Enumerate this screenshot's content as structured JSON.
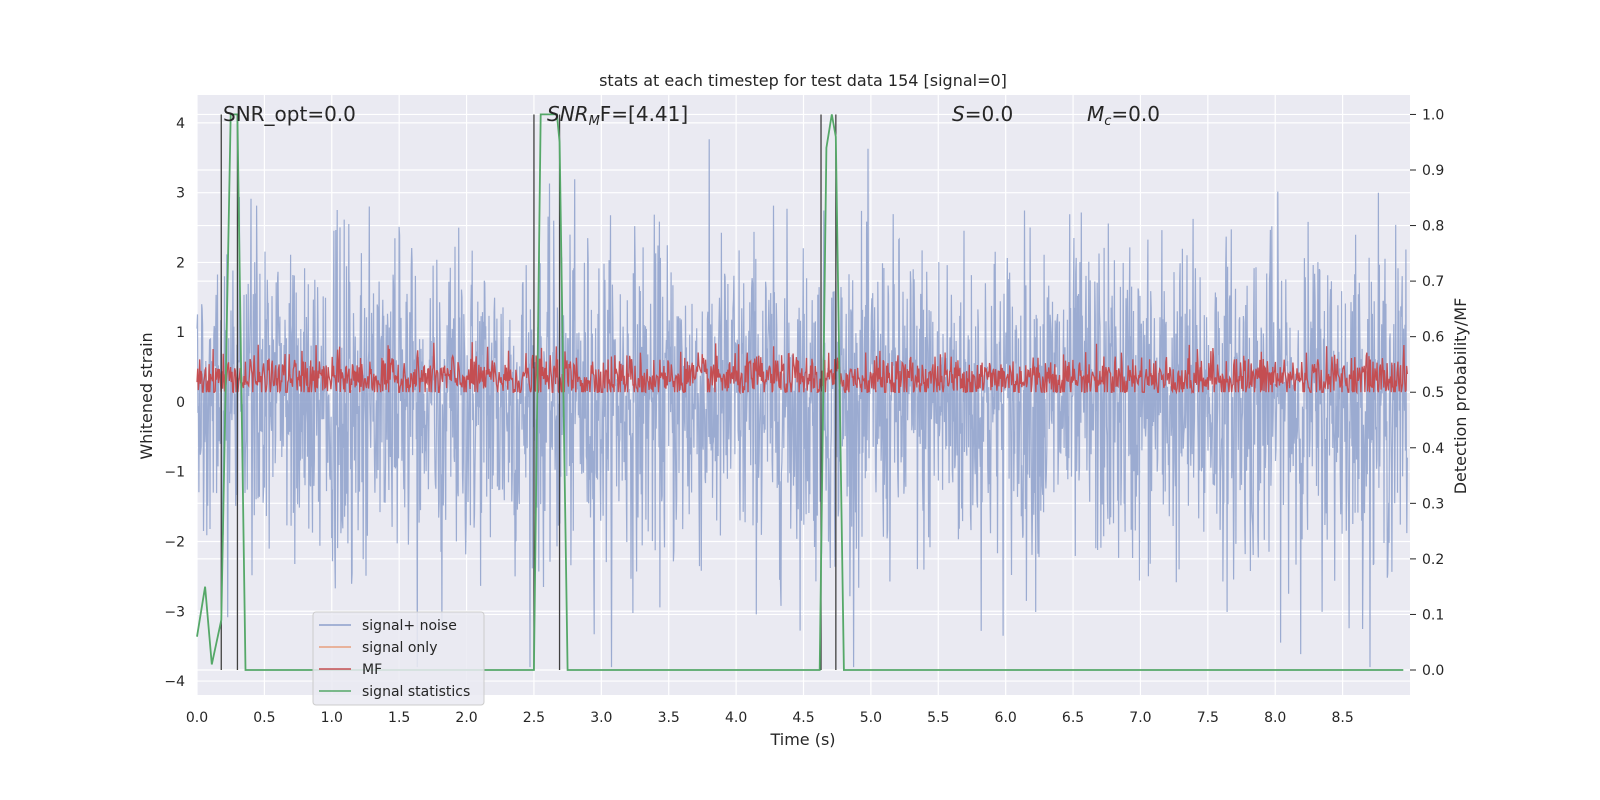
{
  "chart_data": {
    "type": "line",
    "title": "stats at each timestep for test data 154 [signal=0]",
    "xlabel": "Time (s)",
    "ylabel": "Whitened strain",
    "y2label": "Detection probability/MF",
    "xlim": [
      0.0,
      9.0
    ],
    "ylim": [
      -4.2,
      4.4
    ],
    "y2lim": [
      -0.045,
      1.035
    ],
    "xticks": [
      0.0,
      0.5,
      1.0,
      1.5,
      2.0,
      2.5,
      3.0,
      3.5,
      4.0,
      4.5,
      5.0,
      5.5,
      6.0,
      6.5,
      7.0,
      7.5,
      8.0,
      8.5
    ],
    "xtick_labels": [
      "0.0",
      "0.5",
      "1.0",
      "1.5",
      "2.0",
      "2.5",
      "3.0",
      "3.5",
      "4.0",
      "4.5",
      "5.0",
      "5.5",
      "6.0",
      "6.5",
      "7.0",
      "7.5",
      "8.0",
      "8.5"
    ],
    "yticks": [
      4,
      3,
      2,
      1,
      0,
      -1,
      -2,
      -3,
      -4
    ],
    "ytick_labels": [
      "4",
      "3",
      "2",
      "1",
      "0",
      "−1",
      "−2",
      "−3",
      "−4"
    ],
    "y2ticks": [
      1.0,
      0.9,
      0.8,
      0.7,
      0.6,
      0.5,
      0.4,
      0.3,
      0.2,
      0.1,
      0.0
    ],
    "y2tick_labels": [
      "1.0",
      "0.9",
      "0.8",
      "0.7",
      "0.6",
      "0.5",
      "0.4",
      "0.3",
      "0.2",
      "0.1",
      "0.0"
    ],
    "grid": true,
    "legend_position": "lower-left",
    "legend": [
      {
        "label": "signal+ noise",
        "color": "#8da0cb"
      },
      {
        "label": "signal only",
        "color": "#e8a07e"
      },
      {
        "label": "MF",
        "color": "#c44e52"
      },
      {
        "label": "signal statistics",
        "color": "#55a868"
      }
    ],
    "annotations": {
      "snr_opt": "SNR_opt=0.0",
      "snr_mf_sym": "SNR",
      "snr_mf_sub": "M",
      "snr_mf_rest": "F=[4.41]",
      "s_sym": "S",
      "s_rest": "=0.0",
      "mc_sym": "M",
      "mc_sub": "c",
      "mc_rest": "=0.0"
    },
    "vlines": [
      0.18,
      0.3,
      2.5,
      2.69,
      4.63,
      4.74
    ],
    "series": [
      {
        "name": "signal+ noise",
        "axis": "left",
        "color": "#8da0cb",
        "description_range": [
          -2.5,
          2.5
        ],
        "x_range": [
          0.0,
          9.0
        ],
        "note": "dense noise, approx. range shown"
      },
      {
        "name": "MF",
        "axis": "right",
        "color": "#c44e52",
        "x_range": [
          0.0,
          9.0
        ],
        "y2_range": [
          0.5,
          0.6
        ]
      },
      {
        "name": "signal statistics",
        "axis": "right",
        "color": "#55a868",
        "x": [
          0.0,
          0.06,
          0.11,
          0.18,
          0.25,
          0.3,
          0.36,
          0.38,
          2.5,
          2.55,
          2.67,
          2.69,
          2.75,
          4.62,
          4.67,
          4.71,
          4.74,
          4.8,
          8.95
        ],
        "y": [
          0.06,
          0.15,
          0.01,
          0.09,
          1.0,
          1.0,
          0.0,
          0.0,
          0.0,
          1.0,
          1.0,
          0.95,
          0.0,
          0.0,
          0.94,
          1.0,
          0.96,
          0.0,
          0.0
        ]
      }
    ]
  }
}
